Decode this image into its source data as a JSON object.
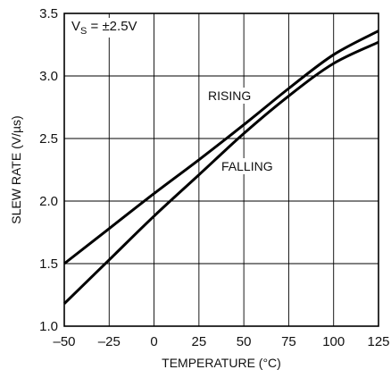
{
  "chart_data": {
    "type": "line",
    "xlabel": "TEMPERATURE (°C)",
    "ylabel": "SLEW RATE (V/µs)",
    "xlim": [
      -50,
      125
    ],
    "ylim": [
      1.0,
      3.5
    ],
    "x_ticks": [
      -50,
      -25,
      0,
      25,
      50,
      75,
      100,
      125
    ],
    "y_ticks": [
      1.0,
      1.5,
      2.0,
      2.5,
      3.0,
      3.5
    ],
    "x_tick_labels": [
      "–50",
      "–25",
      "0",
      "25",
      "50",
      "75",
      "100",
      "125"
    ],
    "y_tick_labels": [
      "1.0",
      "1.5",
      "2.0",
      "2.5",
      "3.0",
      "3.5"
    ],
    "grid": true,
    "annotation": {
      "base": "V",
      "sub": "S",
      "rest": " = ±2.5V"
    },
    "series": [
      {
        "name": "RISING",
        "x": [
          -50,
          -25,
          0,
          25,
          50,
          75,
          100,
          125
        ],
        "y": [
          1.5,
          1.78,
          2.06,
          2.33,
          2.61,
          2.9,
          3.17,
          3.36
        ]
      },
      {
        "name": "FALLING",
        "x": [
          -50,
          -25,
          0,
          25,
          50,
          75,
          100,
          125
        ],
        "y": [
          1.18,
          1.53,
          1.88,
          2.21,
          2.54,
          2.84,
          3.1,
          3.27
        ]
      }
    ]
  }
}
